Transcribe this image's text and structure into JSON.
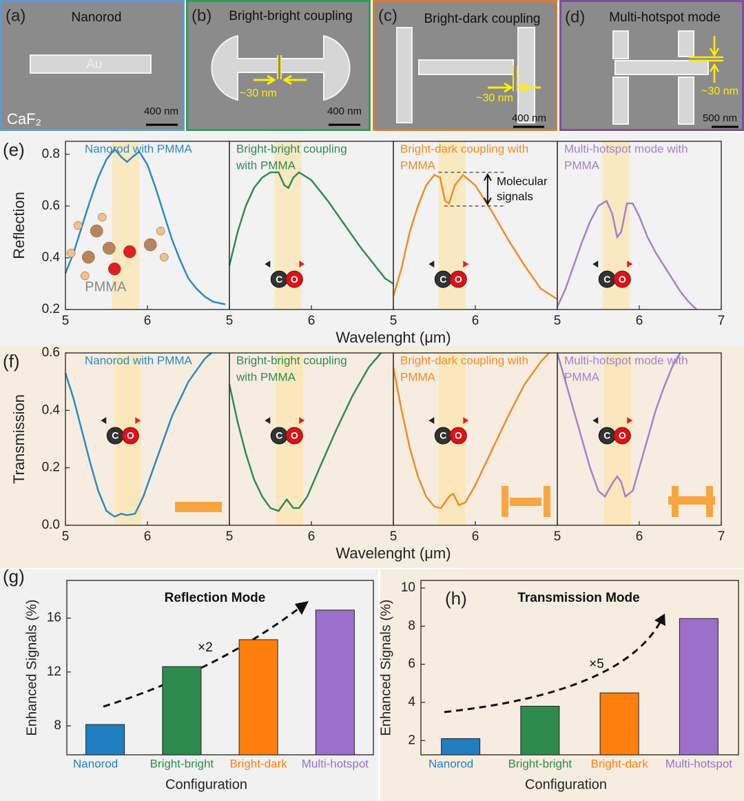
{
  "sem_panels": [
    {
      "label": "(a)",
      "title": "Nanorod",
      "material": "Au",
      "substrate": "CaF₂",
      "scale": "400 nm"
    },
    {
      "label": "(b)",
      "title": "Bright-bright coupling",
      "gap": "~30 nm",
      "scale": "400 nm"
    },
    {
      "label": "(c)",
      "title": "Bright-dark coupling",
      "gap": "~30 nm",
      "scale": "400 nm"
    },
    {
      "label": "(d)",
      "title": "Multi-hotspot mode",
      "gap": "~30 nm",
      "scale": "500 nm"
    }
  ],
  "molecule_labels": [
    "C",
    "O"
  ],
  "chart_data": [
    {
      "type": "line",
      "label": "(e)",
      "ylabel": "Reflection",
      "xlabel": "Wavelenght (μm)",
      "xlim": [
        5,
        7
      ],
      "ylim": [
        0.2,
        0.85
      ],
      "yticks": [
        0.2,
        0.4,
        0.6,
        0.8
      ],
      "highlight_color": "#fbe6b0",
      "panels": [
        {
          "title": [
            "Nanorod with PMMA"
          ],
          "color": "#2a8ac4",
          "xticks": [
            5,
            6
          ],
          "highlight": [
            5.57,
            5.9
          ],
          "molecule_label": "PMMA",
          "x": [
            5,
            5.1,
            5.2,
            5.3,
            5.4,
            5.5,
            5.6,
            5.68,
            5.75,
            5.82,
            5.9,
            6.0,
            6.1,
            6.2,
            6.3,
            6.4,
            6.5,
            6.6,
            6.7,
            6.8,
            6.95
          ],
          "values": [
            0.34,
            0.42,
            0.52,
            0.62,
            0.71,
            0.78,
            0.82,
            0.79,
            0.77,
            0.79,
            0.81,
            0.76,
            0.67,
            0.57,
            0.47,
            0.39,
            0.32,
            0.28,
            0.25,
            0.23,
            0.22
          ]
        },
        {
          "title": [
            "Bright-bright coupling",
            "with PMMA"
          ],
          "color": "#2e8b57",
          "xticks": [
            5,
            6
          ],
          "highlight": [
            5.55,
            5.88
          ],
          "x": [
            5,
            5.1,
            5.2,
            5.3,
            5.4,
            5.5,
            5.6,
            5.67,
            5.72,
            5.78,
            5.85,
            6.0,
            6.2,
            6.4,
            6.6,
            6.8,
            6.9,
            7
          ],
          "values": [
            0.37,
            0.5,
            0.6,
            0.67,
            0.71,
            0.73,
            0.73,
            0.68,
            0.67,
            0.71,
            0.73,
            0.7,
            0.62,
            0.53,
            0.44,
            0.36,
            0.32,
            0.3
          ]
        },
        {
          "title": [
            "Bright-dark coupling with",
            "PMMA"
          ],
          "color": "#f58a1f",
          "xticks": [
            5,
            6
          ],
          "highlight": [
            5.55,
            5.88
          ],
          "signal_note": [
            "Molecular",
            "signals"
          ],
          "signal_levels": [
            0.73,
            0.6
          ],
          "x": [
            5,
            5.1,
            5.2,
            5.3,
            5.4,
            5.5,
            5.57,
            5.63,
            5.68,
            5.75,
            5.85,
            6.0,
            6.2,
            6.4,
            6.6,
            6.8,
            7
          ],
          "values": [
            0.25,
            0.36,
            0.5,
            0.6,
            0.68,
            0.72,
            0.71,
            0.62,
            0.61,
            0.68,
            0.72,
            0.68,
            0.58,
            0.47,
            0.37,
            0.28,
            0.24
          ]
        },
        {
          "title": [
            "Multi-hotspot mode with",
            "PMMA"
          ],
          "color": "#a67fd1",
          "xticks": [
            5,
            6,
            7
          ],
          "highlight": [
            5.55,
            5.88
          ],
          "x": [
            5,
            5.1,
            5.2,
            5.3,
            5.4,
            5.5,
            5.6,
            5.67,
            5.73,
            5.78,
            5.85,
            5.92,
            6.0,
            6.1,
            6.2,
            6.3,
            6.4,
            6.5,
            6.6,
            6.7
          ],
          "values": [
            0.21,
            0.28,
            0.37,
            0.46,
            0.54,
            0.6,
            0.62,
            0.57,
            0.48,
            0.5,
            0.61,
            0.61,
            0.56,
            0.48,
            0.42,
            0.37,
            0.32,
            0.27,
            0.23,
            0.2
          ]
        }
      ]
    },
    {
      "type": "line",
      "label": "(f)",
      "ylabel": "Transmission",
      "xlabel": "Wavelenght (μm)",
      "xlim": [
        5,
        7
      ],
      "ylim": [
        0,
        0.6
      ],
      "yticks": [
        {
          "value": 0,
          "label": "0.0"
        },
        0.2,
        0.4,
        0.6
      ],
      "highlight_color": "#fbe6b0",
      "panels": [
        {
          "title": [
            "Nanorod with PMMA"
          ],
          "color": "#2a8ac4",
          "xticks": [
            5,
            6
          ],
          "highlight": [
            5.6,
            5.92
          ],
          "x": [
            5,
            5.1,
            5.2,
            5.3,
            5.4,
            5.5,
            5.6,
            5.68,
            5.75,
            5.85,
            5.95,
            6.1,
            6.3,
            6.5,
            6.7,
            6.78
          ],
          "values": [
            0.53,
            0.44,
            0.33,
            0.22,
            0.12,
            0.05,
            0.03,
            0.04,
            0.035,
            0.04,
            0.1,
            0.22,
            0.38,
            0.5,
            0.58,
            0.6
          ]
        },
        {
          "title": [
            "Bright-bright coupling",
            "with PMMA"
          ],
          "color": "#2e8b57",
          "xticks": [
            5,
            6
          ],
          "highlight": [
            5.57,
            5.9
          ],
          "x": [
            5,
            5.1,
            5.2,
            5.3,
            5.4,
            5.5,
            5.6,
            5.7,
            5.78,
            5.85,
            5.95,
            6.1,
            6.3,
            6.5,
            6.7,
            6.85
          ],
          "values": [
            0.49,
            0.36,
            0.25,
            0.16,
            0.1,
            0.06,
            0.05,
            0.09,
            0.06,
            0.06,
            0.1,
            0.2,
            0.33,
            0.45,
            0.55,
            0.6
          ]
        },
        {
          "title": [
            "Bright-dark coupling with",
            "PMMA"
          ],
          "color": "#f58a1f",
          "xticks": [
            5,
            6
          ],
          "highlight": [
            5.55,
            5.88
          ],
          "x": [
            5,
            5.1,
            5.2,
            5.3,
            5.4,
            5.5,
            5.58,
            5.68,
            5.73,
            5.8,
            5.88,
            6.0,
            6.2,
            6.4,
            6.6,
            6.8,
            6.9
          ],
          "values": [
            0.55,
            0.4,
            0.27,
            0.17,
            0.1,
            0.065,
            0.06,
            0.1,
            0.11,
            0.07,
            0.08,
            0.14,
            0.26,
            0.38,
            0.49,
            0.57,
            0.6
          ]
        },
        {
          "title": [
            "Multi-hotspot mode with",
            "PMMA"
          ],
          "color": "#a67fd1",
          "xticks": [
            5,
            6,
            7
          ],
          "highlight": [
            5.57,
            5.9
          ],
          "x": [
            5,
            5.1,
            5.2,
            5.3,
            5.4,
            5.5,
            5.58,
            5.68,
            5.73,
            5.78,
            5.83,
            5.92,
            6.0,
            6.1,
            6.2,
            6.3,
            6.4,
            6.5
          ],
          "values": [
            0.6,
            0.5,
            0.4,
            0.3,
            0.2,
            0.12,
            0.1,
            0.15,
            0.17,
            0.15,
            0.1,
            0.12,
            0.2,
            0.3,
            0.4,
            0.48,
            0.55,
            0.6
          ]
        }
      ]
    },
    {
      "type": "bar",
      "label": "(g)",
      "title": "Reflection Mode",
      "factor": "×2",
      "xlabel": "Configuration",
      "ylabel": "Enhanced Signals (%)",
      "categories": [
        "Nanorod",
        "Bright-bright",
        "Bright-dark",
        "Multi-hotspot"
      ],
      "colors": [
        "#1f7fc0",
        "#2e8b4e",
        "#ff7f0e",
        "#9b6fcb"
      ],
      "values": [
        8.1,
        12.4,
        14.4,
        16.6
      ],
      "ylim": [
        5.85,
        18.8
      ],
      "yticks": [
        8,
        12,
        16
      ]
    },
    {
      "type": "bar",
      "label": "(h)",
      "title": "Transmission Mode",
      "factor": "×5",
      "xlabel": "Configuration",
      "ylabel": "Enhanced Signals (%)",
      "categories": [
        "Nanorod",
        "Bright-bright",
        "Bright-dark",
        "Multi-hotspot"
      ],
      "colors": [
        "#1f7fc0",
        "#2e8b4e",
        "#ff7f0e",
        "#9b6fcb"
      ],
      "values": [
        2.1,
        3.8,
        4.5,
        8.4
      ],
      "ylim": [
        1.25,
        10.4
      ],
      "yticks": [
        2,
        4,
        6,
        8,
        10
      ]
    }
  ]
}
